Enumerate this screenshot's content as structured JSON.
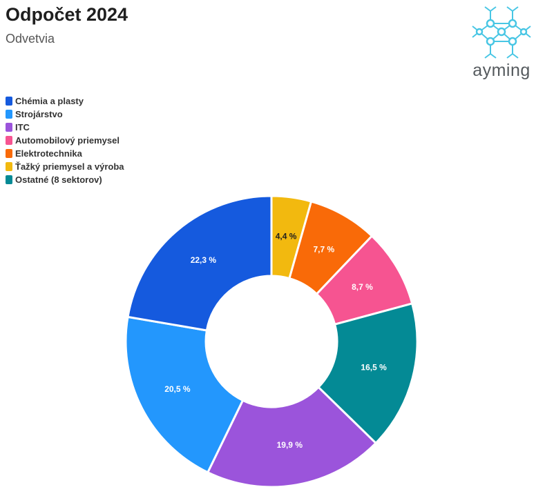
{
  "title": "Odpočet 2024",
  "subtitle": "Odvetvia",
  "logo": {
    "text": "ayming",
    "icon": "network-nodes-icon",
    "color": "#48c6e4"
  },
  "chart_data": {
    "type": "pie",
    "donut": true,
    "legend_position": "top-left",
    "slices": [
      {
        "name": "Ťažký priemysel a výroba",
        "value": 4.4,
        "label": "4,4 %",
        "color": "#f2b90f",
        "text_color": "#1f1f1f"
      },
      {
        "name": "Elektrotechnika",
        "value": 7.7,
        "label": "7,7 %",
        "color": "#f96a08",
        "text_color": "#ffffff"
      },
      {
        "name": "Automobilový priemysel",
        "value": 8.7,
        "label": "8,7 %",
        "color": "#f65491",
        "text_color": "#ffffff"
      },
      {
        "name": "Ostatné (8 sektorov)",
        "value": 16.5,
        "label": "16,5 %",
        "color": "#048a95",
        "text_color": "#ffffff"
      },
      {
        "name": "ITC",
        "value": 19.9,
        "label": "19,9 %",
        "color": "#9b54db",
        "text_color": "#ffffff"
      },
      {
        "name": "Strojárstvo",
        "value": 20.5,
        "label": "20,5 %",
        "color": "#2397fd",
        "text_color": "#ffffff"
      },
      {
        "name": "Chémia a plasty",
        "value": 22.3,
        "label": "22,3 %",
        "color": "#155ade",
        "text_color": "#ffffff"
      }
    ],
    "legend_order": [
      "Chémia a plasty",
      "Strojárstvo",
      "ITC",
      "Automobilový priemysel",
      "Elektrotechnika",
      "Ťažký priemysel a výroba",
      "Ostatné (8 sektorov)"
    ]
  }
}
